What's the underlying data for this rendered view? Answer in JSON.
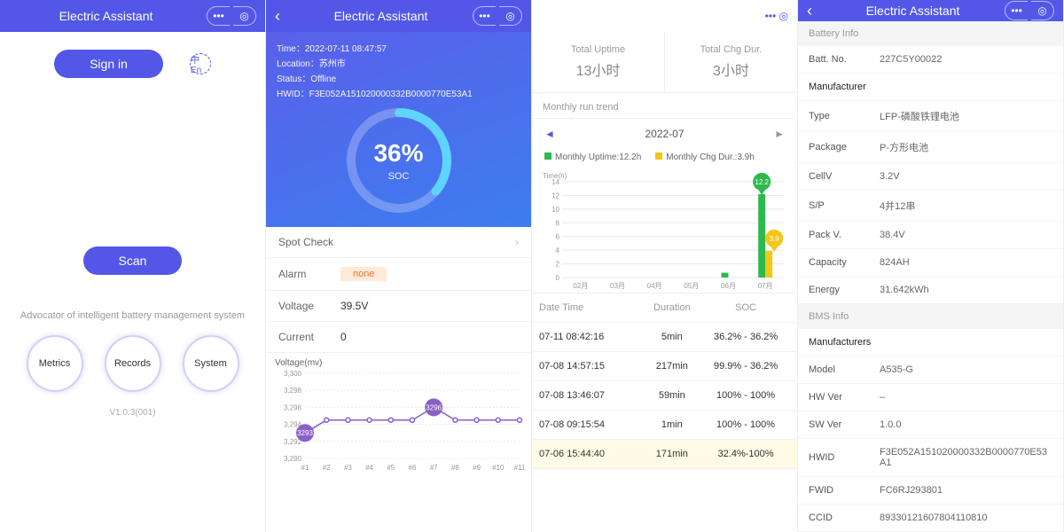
{
  "app_title": "Electric Assistant",
  "colors": {
    "primary": "#5257e8",
    "hero_grad_a": "#5a60ea",
    "hero_grad_b": "#3d7df0",
    "uptime_bar": "#2db94d",
    "chg_bar": "#f5c518",
    "alarm_bg": "#ffe9d9",
    "alarm_fg": "#e67a2e",
    "grid": "#e8e8e8",
    "marker": "#8a5fc7"
  },
  "panel1": {
    "signin": "Sign in",
    "scan": "Scan",
    "tagline": "Advocator of intelligent battery management system",
    "circles": [
      "Metrics",
      "Records",
      "System"
    ],
    "version": "V1.0.3(001)"
  },
  "panel2": {
    "time_label": "Time：",
    "time": "2022-07-11 08:47:57",
    "location_label": "Location：",
    "location": "苏州市",
    "status_label": "Status：",
    "status": "Offline",
    "hwid_label": "HWID：",
    "hwid": "F3E052A151020000332B0000770E53A1",
    "soc_pct": "36%",
    "soc_label": "SOC",
    "soc_value": 36,
    "spot_check": "Spot Check",
    "alarm_label": "Alarm",
    "alarm_value": "none",
    "voltage_label": "Voltage",
    "voltage_value": "39.5V",
    "current_label": "Current",
    "current_value": "0",
    "vchart": {
      "title": "Voltage(mv)",
      "ylim": [
        3290,
        3300
      ],
      "yticks": [
        3290,
        3292,
        3294,
        3296,
        3298,
        3300
      ],
      "xticks": [
        "#1",
        "#2",
        "#3",
        "#4",
        "#5",
        "#6",
        "#7",
        "#8",
        "#9",
        "#10",
        "#11"
      ],
      "values": [
        3293,
        3294.5,
        3294.5,
        3294.5,
        3294.5,
        3294.5,
        3296,
        3294.5,
        3294.5,
        3294.5,
        3294.5
      ],
      "markers": [
        {
          "i": 0,
          "v": 3293,
          "label": "3293"
        },
        {
          "i": 6,
          "v": 3296,
          "label": "3296"
        }
      ]
    }
  },
  "panel3": {
    "uptime_label": "Total Uptime",
    "uptime_value": "13小时",
    "chg_label": "Total Chg Dur.",
    "chg_value": "3小时",
    "trend_title": "Monthly run trend",
    "month": "2022-07",
    "legend_uptime": "Monthly Uptime:12.2h",
    "legend_chg": "Monthly Chg Dur.:3.9h",
    "barchart": {
      "ylabel": "Time(h)",
      "ylim": [
        0,
        14
      ],
      "yticks": [
        0,
        2,
        4,
        6,
        8,
        10,
        12,
        14
      ],
      "months": [
        "02月",
        "03月",
        "04月",
        "05月",
        "06月",
        "07月"
      ],
      "uptime": [
        0,
        0,
        0,
        0,
        0.7,
        12.2
      ],
      "chg": [
        0,
        0,
        0,
        0,
        0,
        3.9
      ],
      "bubble_uptime": "12.2",
      "bubble_chg": "3.9"
    },
    "table": {
      "headers": [
        "Date Time",
        "Duration",
        "SOC"
      ],
      "rows": [
        {
          "dt": "07-11 08:42:16",
          "dur": "5min",
          "soc": "36.2% - 36.2%",
          "hl": false
        },
        {
          "dt": "07-08 14:57:15",
          "dur": "217min",
          "soc": "99.9% - 36.2%",
          "hl": false
        },
        {
          "dt": "07-08 13:46:07",
          "dur": "59min",
          "soc": "100% - 100%",
          "hl": false
        },
        {
          "dt": "07-08 09:15:54",
          "dur": "1min",
          "soc": "100% - 100%",
          "hl": false
        },
        {
          "dt": "07-06 15:44:40",
          "dur": "171min",
          "soc": "32.4%-100%",
          "hl": true
        }
      ]
    }
  },
  "panel4": {
    "battery_info": "Battery Info",
    "rows1": [
      {
        "k": "Batt. No.",
        "v": "227C5Y00022"
      },
      {
        "k": "Manufacturer",
        "v": "",
        "bold": true
      },
      {
        "k": "Type",
        "v": "LFP-磷酸铁锂电池"
      },
      {
        "k": "Package",
        "v": "P-方形电池"
      },
      {
        "k": "CellV",
        "v": "3.2V"
      },
      {
        "k": "S/P",
        "v": "4并12串"
      },
      {
        "k": "Pack V.",
        "v": "38.4V"
      },
      {
        "k": "Capacity",
        "v": "824AH"
      },
      {
        "k": "Energy",
        "v": "31.642kWh"
      }
    ],
    "bms_info": "BMS Info",
    "rows2": [
      {
        "k": "Manufacturers",
        "v": "",
        "bold": true
      },
      {
        "k": "Model",
        "v": "A535-G"
      },
      {
        "k": "HW Ver",
        "v": "–"
      },
      {
        "k": "SW Ver",
        "v": "1.0.0"
      },
      {
        "k": "HWID",
        "v": "F3E052A151020000332B0000770E53A1"
      },
      {
        "k": "FWID",
        "v": "FC6RJ293801"
      },
      {
        "k": "CCID",
        "v": "89330121607804110810"
      }
    ]
  }
}
